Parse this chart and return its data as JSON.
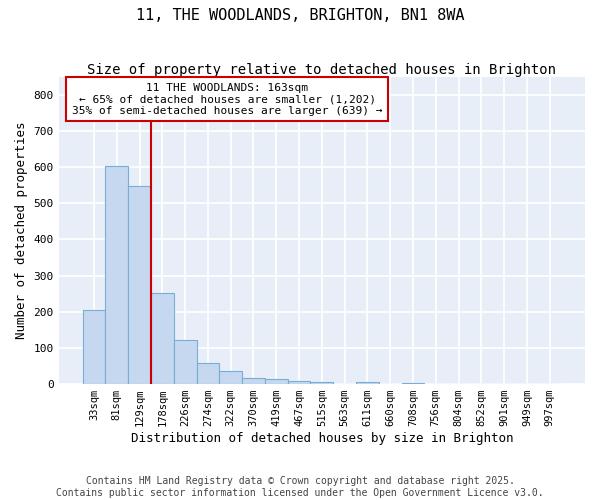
{
  "title_line1": "11, THE WOODLANDS, BRIGHTON, BN1 8WA",
  "title_line2": "Size of property relative to detached houses in Brighton",
  "xlabel": "Distribution of detached houses by size in Brighton",
  "ylabel": "Number of detached properties",
  "categories": [
    "33sqm",
    "81sqm",
    "129sqm",
    "178sqm",
    "226sqm",
    "274sqm",
    "322sqm",
    "370sqm",
    "419sqm",
    "467sqm",
    "515sqm",
    "563sqm",
    "611sqm",
    "660sqm",
    "708sqm",
    "756sqm",
    "804sqm",
    "852sqm",
    "901sqm",
    "949sqm",
    "997sqm"
  ],
  "values": [
    204,
    604,
    547,
    251,
    121,
    57,
    36,
    18,
    14,
    8,
    5,
    0,
    6,
    0,
    4,
    0,
    0,
    0,
    0,
    0,
    0
  ],
  "bar_color": "#c5d8f0",
  "bar_edge_color": "#7aadd4",
  "vline_color": "#cc0000",
  "annotation_text": "11 THE WOODLANDS: 163sqm\n← 65% of detached houses are smaller (1,202)\n35% of semi-detached houses are larger (639) →",
  "annotation_box_color": "white",
  "annotation_box_edgecolor": "#cc0000",
  "ylim": [
    0,
    850
  ],
  "yticks": [
    0,
    100,
    200,
    300,
    400,
    500,
    600,
    700,
    800
  ],
  "background_color": "#e8eef8",
  "grid_color": "white",
  "footnote1": "Contains HM Land Registry data © Crown copyright and database right 2025.",
  "footnote2": "Contains public sector information licensed under the Open Government Licence v3.0.",
  "title_fontsize": 11,
  "subtitle_fontsize": 10,
  "label_fontsize": 9,
  "tick_fontsize": 7.5,
  "footnote_fontsize": 7,
  "vline_bin_index": 3
}
